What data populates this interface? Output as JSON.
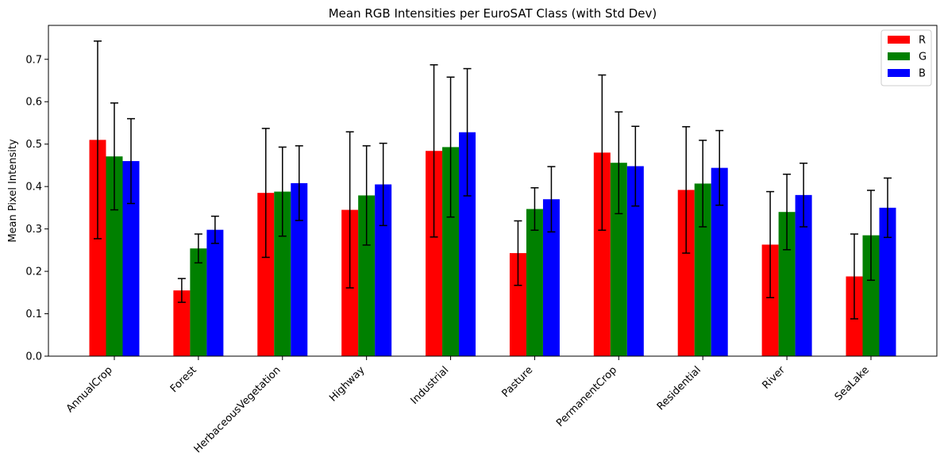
{
  "chart_data": {
    "type": "bar",
    "title": "Mean RGB Intensities per EuroSAT Class (with Std Dev)",
    "xlabel": "",
    "ylabel": "Mean Pixel Intensity",
    "ylim": [
      0,
      0.78
    ],
    "yticks": [
      0.0,
      0.1,
      0.2,
      0.3,
      0.4,
      0.5,
      0.6,
      0.7
    ],
    "ytick_labels": [
      "0.0",
      "0.1",
      "0.2",
      "0.3",
      "0.4",
      "0.5",
      "0.6",
      "0.7"
    ],
    "grid": false,
    "legend_position": "top-right",
    "categories": [
      "AnnualCrop",
      "Forest",
      "HerbaceousVegetation",
      "Highway",
      "Industrial",
      "Pasture",
      "PermanentCrop",
      "Residential",
      "River",
      "SeaLake"
    ],
    "series": [
      {
        "name": "R",
        "color": "#ff0000",
        "values": [
          0.51,
          0.155,
          0.385,
          0.345,
          0.484,
          0.243,
          0.48,
          0.392,
          0.263,
          0.188
        ],
        "err": [
          0.233,
          0.028,
          0.152,
          0.184,
          0.203,
          0.076,
          0.183,
          0.149,
          0.125,
          0.1
        ]
      },
      {
        "name": "G",
        "color": "#008000",
        "values": [
          0.471,
          0.254,
          0.388,
          0.379,
          0.493,
          0.347,
          0.456,
          0.407,
          0.34,
          0.285
        ],
        "err": [
          0.126,
          0.034,
          0.105,
          0.117,
          0.165,
          0.05,
          0.12,
          0.102,
          0.089,
          0.106
        ]
      },
      {
        "name": "B",
        "color": "#0000ff",
        "values": [
          0.46,
          0.298,
          0.408,
          0.405,
          0.528,
          0.37,
          0.448,
          0.444,
          0.38,
          0.35
        ],
        "err": [
          0.1,
          0.032,
          0.088,
          0.097,
          0.15,
          0.077,
          0.094,
          0.088,
          0.075,
          0.07
        ]
      }
    ]
  }
}
